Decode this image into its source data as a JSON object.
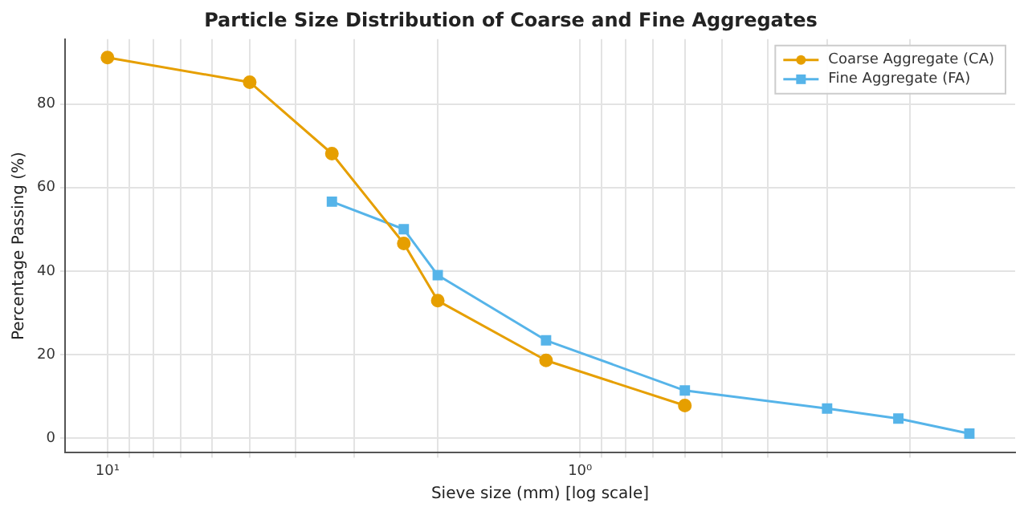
{
  "chart_data": {
    "type": "line",
    "title": "Particle Size Distribution of Coarse and Fine Aggregates",
    "xlabel": "Sieve size (mm) [log scale]",
    "ylabel": "Percentage Passing (%)",
    "log": "x",
    "xlim": [
      12.3,
      0.12
    ],
    "xticks": [
      {
        "value": 10,
        "label": "10¹"
      },
      {
        "value": 9,
        "label": null
      },
      {
        "value": 8,
        "label": null
      },
      {
        "value": 7,
        "label": null
      },
      {
        "value": 6,
        "label": null
      },
      {
        "value": 5,
        "label": null
      },
      {
        "value": 4,
        "label": null
      },
      {
        "value": 3,
        "label": null
      },
      {
        "value": 2,
        "label": null
      },
      {
        "value": 1,
        "label": "10⁰"
      },
      {
        "value": 0.9,
        "label": null
      },
      {
        "value": 0.8,
        "label": null
      },
      {
        "value": 0.7,
        "label": null
      },
      {
        "value": 0.6,
        "label": null
      },
      {
        "value": 0.5,
        "label": null
      },
      {
        "value": 0.4,
        "label": null
      },
      {
        "value": 0.3,
        "label": null
      },
      {
        "value": 0.2,
        "label": null
      }
    ],
    "ylim": [
      -3.5,
      95.5
    ],
    "yticks": [
      0,
      20,
      40,
      60,
      80
    ],
    "grid": true,
    "legend": "top right",
    "line_style": "solid",
    "series": [
      {
        "name": "Coarse Aggregate (CA)",
        "color": "#e69f00",
        "marker": "circle",
        "x": [
          10,
          5,
          3.35,
          2.36,
          2,
          1.18,
          0.6
        ],
        "values": [
          91.1,
          85.2,
          68.1,
          46.6,
          32.9,
          18.6,
          7.8
        ]
      },
      {
        "name": "Fine Aggregate (FA)",
        "color": "#56b4e9",
        "marker": "square",
        "x": [
          3.35,
          2.36,
          2,
          1.18,
          0.6,
          0.3,
          0.212,
          0.15
        ],
        "values": [
          56.6,
          50.0,
          39.0,
          23.4,
          11.4,
          7.1,
          4.7,
          1.1
        ]
      }
    ]
  }
}
